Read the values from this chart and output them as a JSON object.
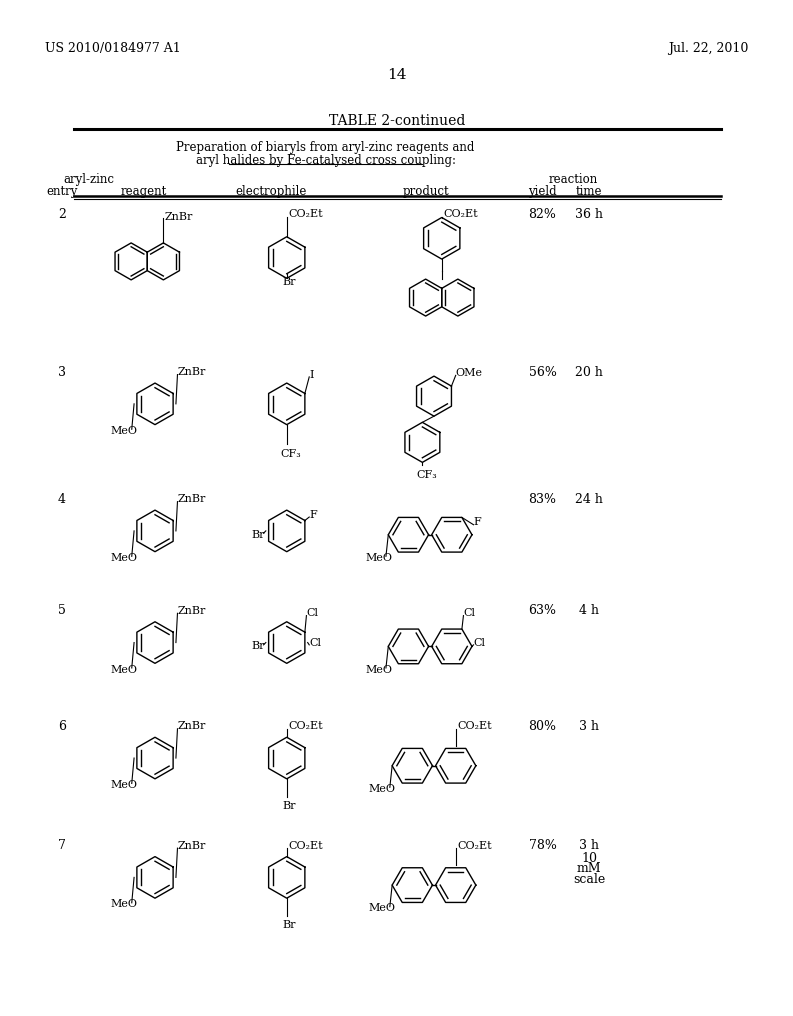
{
  "page_number": "14",
  "patent_number": "US 2010/0184977 A1",
  "patent_date": "Jul. 22, 2010",
  "table_title": "TABLE 2-continued",
  "table_subtitle_line1": "Preparation of biaryls from aryl-zinc reagents and",
  "table_subtitle_line2": "aryl halides by Fe-catalysed cross coupling:",
  "bg_color": "#ffffff",
  "text_color": "#000000"
}
